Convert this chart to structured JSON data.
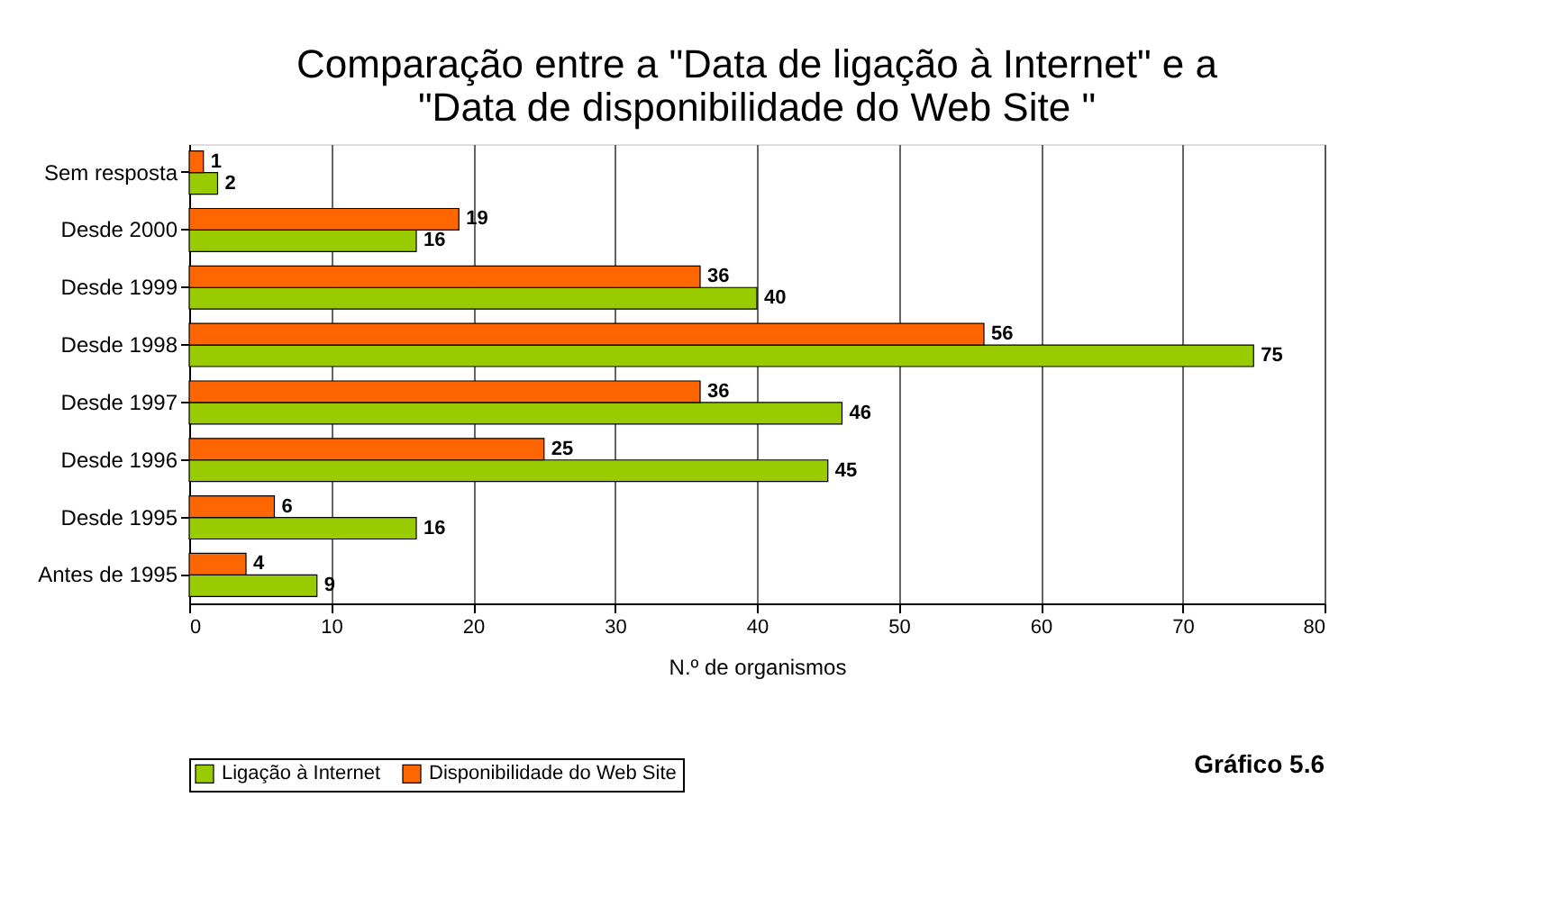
{
  "chart_data": {
    "type": "bar",
    "orientation": "horizontal",
    "title": "Comparação entre a \"Data de ligação à Internet\" e a\n\"Data de disponibilidade do Web Site \"",
    "xlabel": "N.º de organismos",
    "categories": [
      "Sem resposta",
      "Desde 2000",
      "Desde 1999",
      "Desde 1998",
      "Desde 1997",
      "Desde 1996",
      "Desde 1995",
      "Antes de 1995"
    ],
    "series": [
      {
        "name": "Ligação à Internet",
        "color": "#99cc00",
        "values": [
          2,
          16,
          40,
          75,
          46,
          45,
          16,
          9
        ]
      },
      {
        "name": "Disponibilidade do Web Site",
        "color": "#ff6600",
        "values": [
          1,
          19,
          36,
          56,
          36,
          25,
          6,
          4
        ]
      }
    ],
    "xlim": [
      0,
      80
    ],
    "xticks": [
      0,
      10,
      20,
      30,
      40,
      50,
      60,
      70,
      80
    ],
    "grid": "x",
    "legend": "bottom left",
    "data_labels": true,
    "annotations": [
      "Gráfico 5.6"
    ]
  }
}
